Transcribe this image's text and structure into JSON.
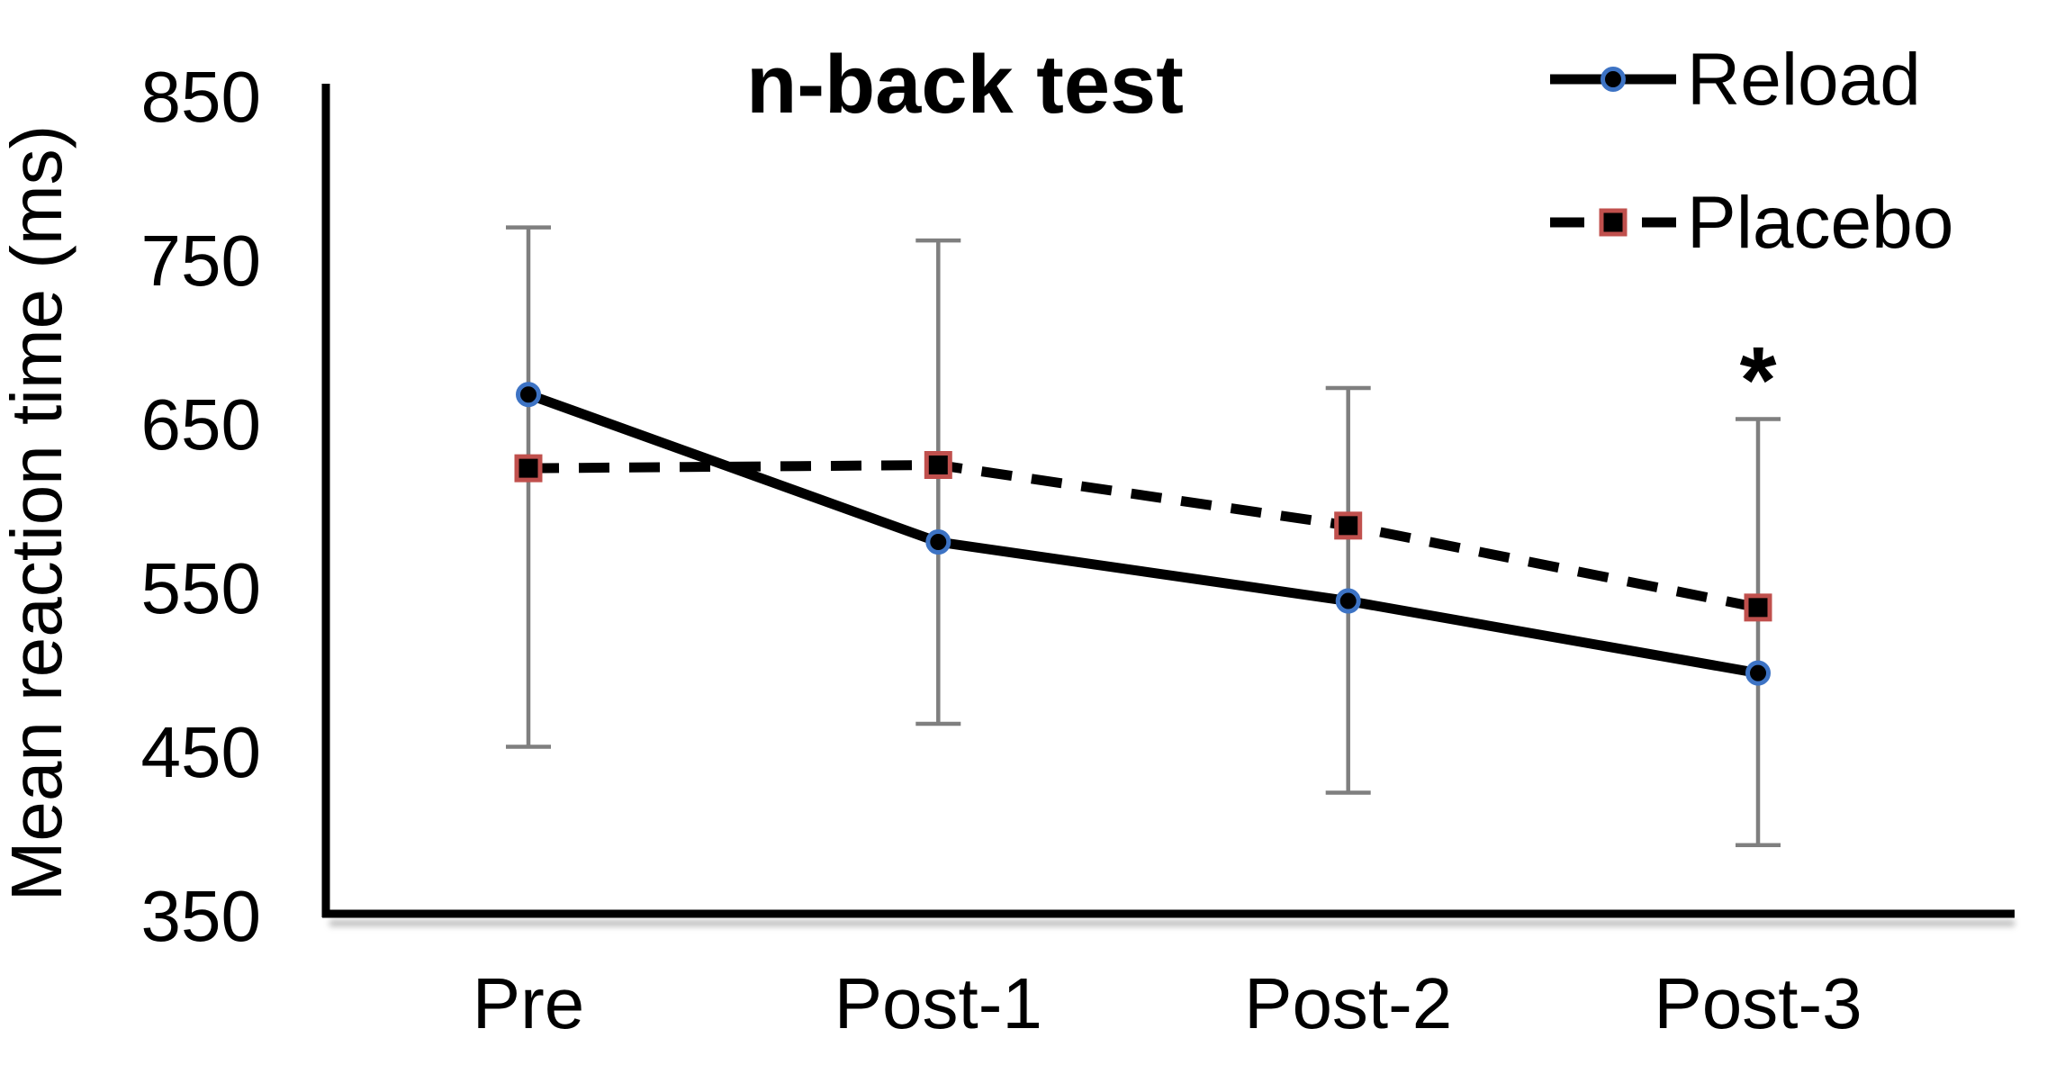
{
  "chart_data": {
    "type": "line",
    "title": "n-back test",
    "xlabel": "",
    "ylabel": "Mean reaction time (ms)",
    "categories": [
      "Pre",
      "Post-1",
      "Post-2",
      "Post-3"
    ],
    "ylim": [
      350,
      850
    ],
    "yticks": [
      850,
      750,
      650,
      550,
      450,
      350
    ],
    "grid": false,
    "legend_position": "top-right",
    "series": [
      {
        "name": "Reload",
        "values": [
          668,
          578,
          542,
          498
        ],
        "line_style": "solid",
        "line_color": "#000000",
        "marker": "circle",
        "marker_fill": "#000000",
        "marker_edge": "#3d73c4"
      },
      {
        "name": "Placebo",
        "values": [
          623,
          625,
          588,
          538
        ],
        "line_style": "dashed",
        "line_color": "#000000",
        "marker": "square",
        "marker_fill": "#000000",
        "marker_edge": "#c0504d"
      }
    ],
    "error_bars": {
      "color": "#7f7f7f",
      "ranges": [
        {
          "category": "Pre",
          "low": 453,
          "high": 770
        },
        {
          "category": "Post-1",
          "low": 467,
          "high": 762
        },
        {
          "category": "Post-2",
          "low": 425,
          "high": 672
        },
        {
          "category": "Post-3",
          "low": 393,
          "high": 653
        }
      ]
    },
    "annotations": [
      {
        "text": "*",
        "category": "Post-3",
        "y_value": 690
      }
    ]
  },
  "colors": {
    "axis": "#000000",
    "axis_shadow": "#aaaaaa",
    "error_bar": "#7f7f7f",
    "reload_marker_edge": "#3d73c4",
    "placebo_marker_edge": "#c0504d",
    "text": "#000000",
    "background": "#ffffff"
  }
}
